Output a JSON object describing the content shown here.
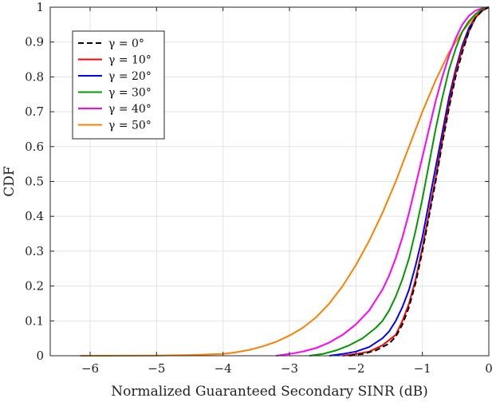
{
  "chart_data": {
    "type": "line",
    "title": "",
    "xlabel": "Normalized Guaranteed Secondary SINR (dB)",
    "ylabel": "CDF",
    "xlim": [
      -6.6,
      0
    ],
    "ylim": [
      0,
      1
    ],
    "xticks": [
      -6,
      -5,
      -4,
      -3,
      -2,
      -1,
      0
    ],
    "xtick_labels": [
      "−6",
      "−5",
      "−4",
      "−3",
      "−2",
      "−1",
      "0"
    ],
    "yticks": [
      0,
      0.1,
      0.2,
      0.3,
      0.4,
      0.5,
      0.6,
      0.7,
      0.8,
      0.9,
      1
    ],
    "ytick_labels": [
      "0",
      "0.1",
      "0.2",
      "0.3",
      "0.4",
      "0.5",
      "0.6",
      "0.7",
      "0.8",
      "0.9",
      "1"
    ],
    "grid": true,
    "legend_position": "top-left",
    "series": [
      {
        "name": "γ = 0°",
        "color": "#000000",
        "dash": "dashed",
        "x": [
          -2.1,
          -1.9,
          -1.7,
          -1.5,
          -1.4,
          -1.3,
          -1.2,
          -1.1,
          -1.0,
          -0.9,
          -0.8,
          -0.7,
          -0.6,
          -0.5,
          -0.4,
          -0.3,
          -0.2,
          -0.1,
          0
        ],
        "y": [
          0,
          0.005,
          0.015,
          0.035,
          0.055,
          0.09,
          0.14,
          0.21,
          0.3,
          0.4,
          0.5,
          0.61,
          0.71,
          0.8,
          0.87,
          0.93,
          0.97,
          0.99,
          1.0
        ]
      },
      {
        "name": "γ = 10°",
        "color": "#ff0000",
        "dash": "solid",
        "x": [
          -2.2,
          -2.0,
          -1.8,
          -1.6,
          -1.4,
          -1.3,
          -1.2,
          -1.1,
          -1.0,
          -0.9,
          -0.8,
          -0.7,
          -0.6,
          -0.5,
          -0.4,
          -0.3,
          -0.2,
          -0.1,
          0
        ],
        "y": [
          0,
          0.005,
          0.012,
          0.03,
          0.06,
          0.1,
          0.15,
          0.22,
          0.31,
          0.41,
          0.51,
          0.62,
          0.72,
          0.81,
          0.88,
          0.93,
          0.97,
          0.99,
          1.0
        ]
      },
      {
        "name": "γ = 20°",
        "color": "#0000ff",
        "dash": "solid",
        "x": [
          -2.4,
          -2.2,
          -2.0,
          -1.8,
          -1.6,
          -1.5,
          -1.4,
          -1.3,
          -1.2,
          -1.1,
          -1.0,
          -0.9,
          -0.8,
          -0.7,
          -0.6,
          -0.5,
          -0.4,
          -0.3,
          -0.2,
          -0.1,
          0
        ],
        "y": [
          0,
          0.005,
          0.012,
          0.025,
          0.05,
          0.07,
          0.1,
          0.14,
          0.19,
          0.26,
          0.34,
          0.44,
          0.54,
          0.64,
          0.74,
          0.82,
          0.89,
          0.94,
          0.97,
          0.99,
          1.0
        ]
      },
      {
        "name": "γ = 30°",
        "color": "#009900",
        "dash": "solid",
        "x": [
          -2.7,
          -2.5,
          -2.3,
          -2.1,
          -1.9,
          -1.7,
          -1.6,
          -1.5,
          -1.4,
          -1.3,
          -1.2,
          -1.1,
          -1.0,
          -0.9,
          -0.8,
          -0.7,
          -0.6,
          -0.5,
          -0.4,
          -0.3,
          -0.2,
          -0.1,
          0
        ],
        "y": [
          0,
          0.005,
          0.015,
          0.03,
          0.05,
          0.08,
          0.1,
          0.13,
          0.17,
          0.22,
          0.28,
          0.36,
          0.45,
          0.55,
          0.65,
          0.74,
          0.82,
          0.88,
          0.93,
          0.96,
          0.98,
          0.995,
          1.0
        ]
      },
      {
        "name": "γ = 40°",
        "color": "#ff00ff",
        "dash": "solid",
        "x": [
          -3.2,
          -3.0,
          -2.8,
          -2.6,
          -2.4,
          -2.2,
          -2.0,
          -1.8,
          -1.7,
          -1.6,
          -1.5,
          -1.4,
          -1.3,
          -1.2,
          -1.1,
          -1.0,
          -0.9,
          -0.8,
          -0.7,
          -0.6,
          -0.5,
          -0.4,
          -0.3,
          -0.2,
          -0.1,
          0
        ],
        "y": [
          0,
          0.005,
          0.012,
          0.022,
          0.038,
          0.06,
          0.09,
          0.13,
          0.16,
          0.19,
          0.23,
          0.28,
          0.34,
          0.41,
          0.49,
          0.57,
          0.65,
          0.73,
          0.8,
          0.86,
          0.91,
          0.95,
          0.975,
          0.99,
          0.997,
          1.0
        ]
      },
      {
        "name": "γ = 50°",
        "color": "#ff8000",
        "dash": "solid",
        "x": [
          -6.15,
          -5.0,
          -4.5,
          -4.0,
          -3.8,
          -3.6,
          -3.4,
          -3.2,
          -3.0,
          -2.8,
          -2.6,
          -2.4,
          -2.2,
          -2.0,
          -1.8,
          -1.6,
          -1.4,
          -1.2,
          -1.0,
          -0.8,
          -0.6,
          -0.4,
          -0.2,
          -0.1,
          0
        ],
        "y": [
          0,
          0.0005,
          0.002,
          0.005,
          0.01,
          0.017,
          0.027,
          0.04,
          0.058,
          0.08,
          0.11,
          0.15,
          0.2,
          0.26,
          0.33,
          0.41,
          0.5,
          0.6,
          0.7,
          0.79,
          0.87,
          0.93,
          0.975,
          0.99,
          1.0
        ]
      }
    ]
  }
}
